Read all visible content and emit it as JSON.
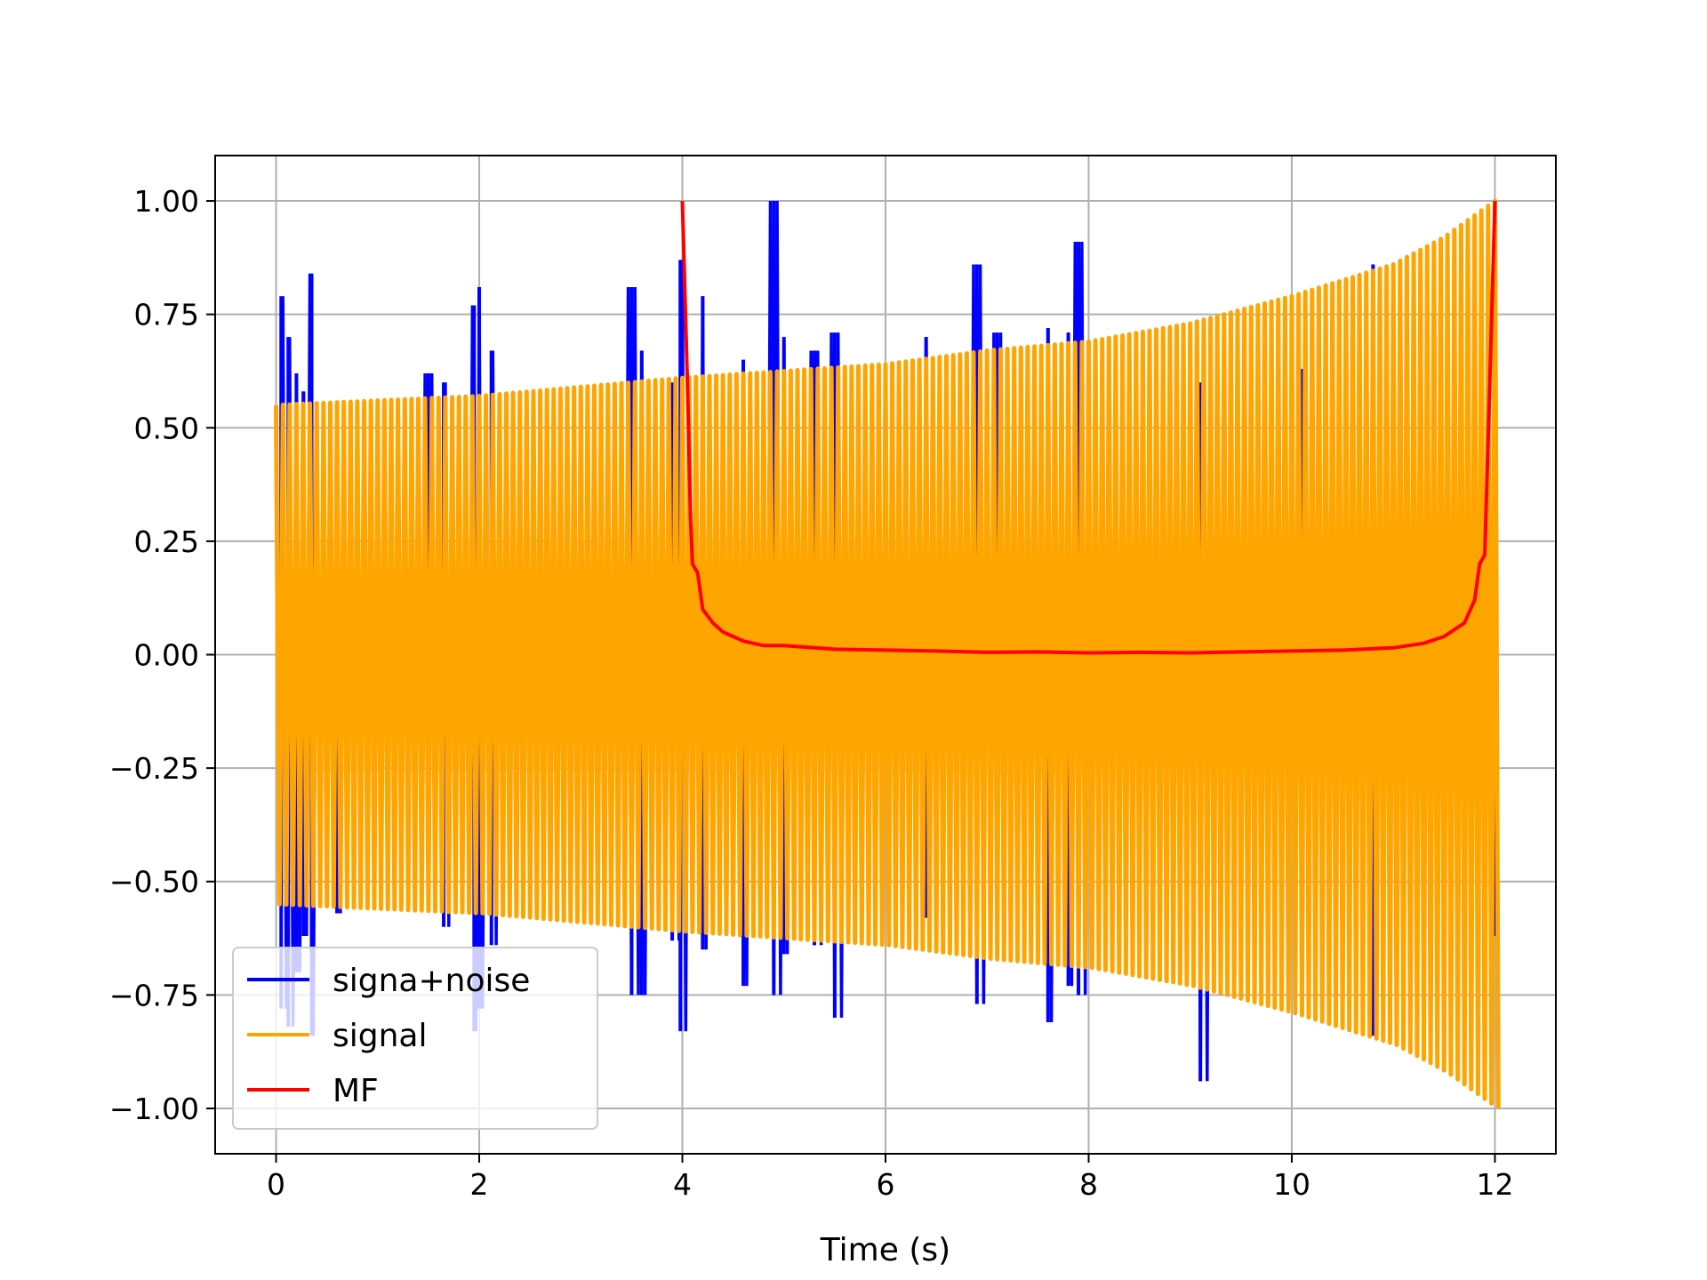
{
  "chart_data": {
    "type": "line",
    "title": "",
    "xlabel": "Time (s)",
    "ylabel": "",
    "xlim": [
      -0.6,
      12.6
    ],
    "ylim": [
      -1.1,
      1.1
    ],
    "xticks": [
      0,
      2,
      4,
      6,
      8,
      10,
      12
    ],
    "xtick_labels": [
      "0",
      "2",
      "4",
      "6",
      "8",
      "10",
      "12"
    ],
    "yticks": [
      1.0,
      0.75,
      0.5,
      0.25,
      0.0,
      -0.25,
      -0.5,
      -0.75,
      -1.0
    ],
    "ytick_labels": [
      "1.00",
      "0.75",
      "0.50",
      "0.25",
      "0.00",
      "−0.25",
      "−0.50",
      "−0.75",
      "−1.00"
    ],
    "grid": true,
    "legend_position": "lower-left",
    "series": [
      {
        "name": "signa+noise",
        "color": "#0000ff",
        "spikes": [
          [
            0.05,
            0.79,
            -0.78
          ],
          [
            0.12,
            0.7,
            -0.82
          ],
          [
            0.2,
            0.62,
            -0.7
          ],
          [
            0.27,
            0.58,
            -0.62
          ],
          [
            0.35,
            0.84,
            -0.84
          ],
          [
            0.6,
            0.45,
            -0.57
          ],
          [
            1.5,
            0.62,
            -0.55
          ],
          [
            1.65,
            0.6,
            -0.6
          ],
          [
            1.95,
            0.77,
            -0.83
          ],
          [
            2.0,
            0.81,
            -0.78
          ],
          [
            2.12,
            0.67,
            -0.64
          ],
          [
            3.5,
            0.81,
            -0.75
          ],
          [
            3.6,
            0.67,
            -0.75
          ],
          [
            3.9,
            0.6,
            -0.63
          ],
          [
            3.98,
            0.87,
            -0.83
          ],
          [
            4.2,
            0.79,
            -0.65
          ],
          [
            4.6,
            0.65,
            -0.73
          ],
          [
            4.9,
            1.0,
            -0.75
          ],
          [
            5.0,
            0.7,
            -0.66
          ],
          [
            5.3,
            0.67,
            -0.64
          ],
          [
            5.5,
            0.71,
            -0.8
          ],
          [
            6.4,
            0.7,
            -0.58
          ],
          [
            6.9,
            0.86,
            -0.77
          ],
          [
            7.1,
            0.71,
            -0.66
          ],
          [
            7.6,
            0.72,
            -0.81
          ],
          [
            7.8,
            0.71,
            -0.73
          ],
          [
            7.9,
            0.91,
            -0.75
          ],
          [
            9.1,
            0.6,
            -0.94
          ],
          [
            10.1,
            0.63,
            -0.61
          ],
          [
            10.8,
            0.86,
            -0.84
          ],
          [
            12.0,
            0.7,
            -0.62
          ]
        ]
      },
      {
        "name": "signal",
        "color": "#ffa500",
        "amplitude": [
          [
            0,
            0.55
          ],
          [
            2,
            0.57
          ],
          [
            4,
            0.61
          ],
          [
            6,
            0.64
          ],
          [
            7,
            0.67
          ],
          [
            8,
            0.69
          ],
          [
            9,
            0.73
          ],
          [
            10,
            0.79
          ],
          [
            11,
            0.86
          ],
          [
            11.5,
            0.92
          ],
          [
            12,
            1.0
          ]
        ],
        "oscillations": 180
      },
      {
        "name": "MF",
        "color": "#ff0000",
        "points": [
          [
            4.0,
            1.0
          ],
          [
            4.05,
            0.6
          ],
          [
            4.08,
            0.3
          ],
          [
            4.1,
            0.2
          ],
          [
            4.15,
            0.18
          ],
          [
            4.2,
            0.1
          ],
          [
            4.3,
            0.07
          ],
          [
            4.4,
            0.05
          ],
          [
            4.6,
            0.03
          ],
          [
            4.8,
            0.02
          ],
          [
            5.0,
            0.02
          ],
          [
            5.5,
            0.012
          ],
          [
            6.0,
            0.01
          ],
          [
            6.5,
            0.008
          ],
          [
            7.0,
            0.005
          ],
          [
            7.5,
            0.006
          ],
          [
            8.0,
            0.004
          ],
          [
            8.5,
            0.005
          ],
          [
            9.0,
            0.004
          ],
          [
            9.5,
            0.006
          ],
          [
            10.0,
            0.008
          ],
          [
            10.5,
            0.01
          ],
          [
            11.0,
            0.015
          ],
          [
            11.3,
            0.025
          ],
          [
            11.5,
            0.04
          ],
          [
            11.7,
            0.07
          ],
          [
            11.8,
            0.12
          ],
          [
            11.85,
            0.2
          ],
          [
            11.9,
            0.22
          ],
          [
            11.95,
            0.6
          ],
          [
            12.0,
            1.0
          ]
        ]
      }
    ]
  }
}
